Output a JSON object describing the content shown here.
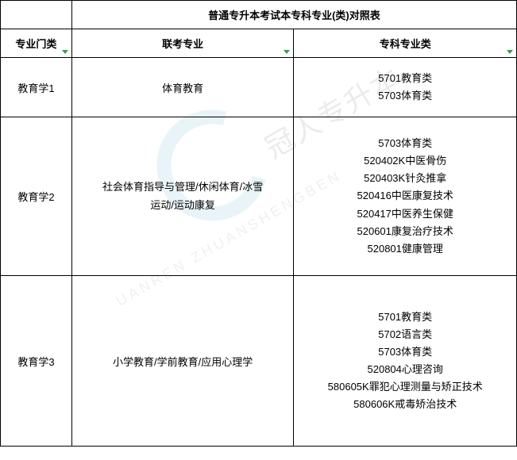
{
  "table": {
    "title": "普通专升本考试本专科专业(类)对照表",
    "headers": {
      "col1": "专业门类",
      "col2": "联考专业",
      "col3": "专科专业类"
    },
    "rows": [
      {
        "category": "教育学1",
        "exam_major": "体育教育",
        "specialty_list": [
          "5701教育类",
          "5703体育类"
        ]
      },
      {
        "category": "教育学2",
        "exam_major_lines": [
          "社会体育指导与管理/休闲体育/冰雪",
          "运动/运动康复"
        ],
        "specialty_list": [
          "5703体育类",
          "520402K中医骨伤",
          "520403K针灸推拿",
          "520416中医康复技术",
          "520417中医养生保健",
          "520601康复治疗技术",
          "520801健康管理"
        ]
      },
      {
        "category": "教育学3",
        "exam_major": "小学教育/学前教育/应用心理学",
        "specialty_list": [
          "5701教育类",
          "5702语言类",
          "5703体育类",
          "520804心理咨询",
          "580605K罪犯心理测量与矫正技术",
          "580606K戒毒矫治技术"
        ]
      }
    ]
  },
  "watermark": {
    "text1": "UANREN ZHUANSHENGBEN",
    "text2": "冠人专升本"
  },
  "styling": {
    "border_color": "#000000",
    "background_color": "#ffffff",
    "text_color": "#000000",
    "dropdown_arrow_color": "#2e9e5b",
    "watermark_circle_color": "#4aa8c8",
    "watermark_text_color": "#888888",
    "font_size_body": 13,
    "font_size_header": 13,
    "line_height": 1.7
  }
}
